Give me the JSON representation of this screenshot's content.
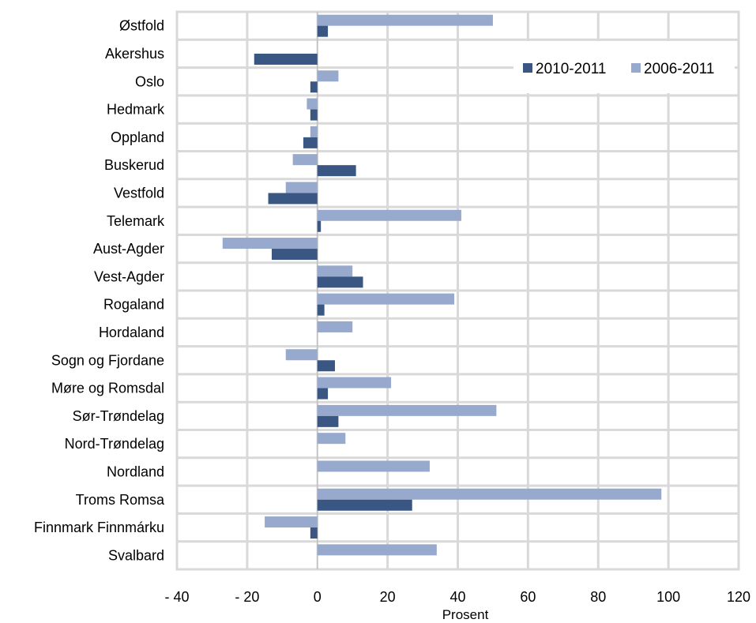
{
  "chart_data": {
    "type": "bar",
    "orientation": "horizontal",
    "categories": [
      "Østfold",
      "Akershus",
      "Oslo",
      "Hedmark",
      "Oppland",
      "Buskerud",
      "Vestfold",
      "Telemark",
      "Aust-Agder",
      "Vest-Agder",
      "Rogaland",
      "Hordaland",
      "Sogn og Fjordane",
      "Møre og Romsdal",
      "Sør-Trøndelag",
      "Nord-Trøndelag",
      "Nordland",
      "Troms Romsa",
      "Finnmark Finnmárku",
      "Svalbard"
    ],
    "series": [
      {
        "name": "2010-2011",
        "color": "#3a5683",
        "values": [
          3,
          -18,
          -2,
          -2,
          -4,
          11,
          -14,
          1,
          -13,
          13,
          2,
          0,
          5,
          3,
          6,
          0,
          0,
          27,
          -2,
          0
        ]
      },
      {
        "name": "2006-2011",
        "color": "#97a9cc",
        "values": [
          50,
          0,
          6,
          -3,
          -2,
          -7,
          -9,
          41,
          -27,
          10,
          39,
          10,
          -9,
          21,
          51,
          8,
          32,
          98,
          -15,
          34
        ]
      }
    ],
    "xlabel": "Prosent",
    "xlim": [
      -40,
      120
    ],
    "xticks": [
      -40,
      -20,
      0,
      20,
      40,
      60,
      80,
      100,
      120
    ],
    "xtick_labels": [
      "- 40",
      "- 20",
      "0",
      "20",
      "40",
      "60",
      "80",
      "100",
      "120"
    ],
    "grid": true,
    "legend_position": "top-right"
  }
}
